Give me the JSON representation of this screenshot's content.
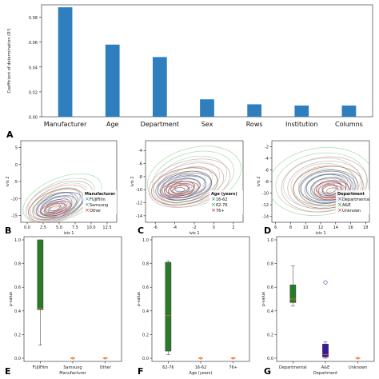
{
  "chart_data": [
    {
      "panel": "A",
      "type": "bar",
      "ylabel": "Coefficient of determination (R²)",
      "ylim": [
        0,
        0.09
      ],
      "yticks": [
        "0.00",
        "0.02",
        "0.04",
        "0.06",
        "0.08"
      ],
      "categories": [
        "Manufacturer",
        "Age",
        "Department",
        "Sex",
        "Rows",
        "Institution",
        "Columns"
      ],
      "values": [
        0.088,
        0.058,
        0.048,
        0.014,
        0.01,
        0.009,
        0.009
      ],
      "color": "#2f7fbf"
    },
    {
      "panel": "B",
      "type": "line",
      "xlabel": "ivis 1",
      "ylabel": "ivis 2",
      "xticks": [
        "0.0",
        "2.5",
        "5.0",
        "7.5",
        "10.0",
        "12.5"
      ],
      "yticks": [
        "-15",
        "-10",
        "-5",
        "0",
        "5"
      ],
      "xlim": [
        -1,
        14
      ],
      "ylim": [
        -17,
        7
      ],
      "legend_title": "Manufacturer",
      "legend": [
        "FUJIFilm",
        "Samsung",
        "Other"
      ],
      "legend_colors": [
        "#1f9e89",
        "#3e8e8e",
        "#d62728"
      ],
      "legend_placement": "bottom-right"
    },
    {
      "panel": "C",
      "type": "line",
      "xlabel": "ivis 1",
      "ylabel": "ivis 2",
      "xticks": [
        "-6",
        "-4",
        "-2",
        "0",
        "2"
      ],
      "yticks": [
        "-14",
        "-12",
        "-10",
        "-8",
        "-6",
        "-4"
      ],
      "xlim": [
        -7,
        3
      ],
      "ylim": [
        -15,
        -2.5
      ],
      "legend_title": "Age (years)",
      "legend": [
        "16-62",
        "62-76",
        "76+"
      ],
      "legend_colors": [
        "#1f77b4",
        "#2ca02c",
        "#d62728"
      ],
      "legend_placement": "bottom-right"
    },
    {
      "panel": "D",
      "type": "line",
      "xlabel": "ivis 1",
      "ylabel": "ivis 2",
      "xticks": [
        "6",
        "8",
        "10",
        "12",
        "14",
        "16",
        "18"
      ],
      "yticks": [
        "-14",
        "-12",
        "-10",
        "-8",
        "-6",
        "-4",
        "-2"
      ],
      "xlim": [
        5.5,
        18.5
      ],
      "ylim": [
        -15,
        -1
      ],
      "legend_title": "Department",
      "legend": [
        "Departmental",
        "A&E",
        "Unknown"
      ],
      "legend_colors": [
        "#1f77b4",
        "#2ca02c",
        "#d62728"
      ],
      "legend_placement": "bottom-right"
    },
    {
      "panel": "E",
      "type": "box",
      "xlabel": "Manufacturer",
      "ylabel": "p-value",
      "ylim": [
        0,
        1
      ],
      "yticks": [
        "0.0",
        "0.2",
        "0.4",
        "0.6",
        "0.8",
        "1.0"
      ],
      "categories": [
        "FUJIFilm",
        "Samsung",
        "Other"
      ],
      "boxes": [
        {
          "whislo": 0.11,
          "q1": 0.41,
          "med": 0.42,
          "q3": 1.0,
          "whishi": 1.0,
          "color": "#2a7a2a"
        },
        {
          "whislo": 0.0,
          "q1": 0.0,
          "med": 0.0,
          "q3": 0.0,
          "whishi": 0.0,
          "color": "#e07020"
        },
        {
          "whislo": 0.0,
          "q1": 0.0,
          "med": 0.0,
          "q3": 0.0,
          "whishi": 0.0,
          "color": "#e07020"
        }
      ]
    },
    {
      "panel": "F",
      "type": "box",
      "xlabel": "Age (years)",
      "ylabel": "p-value",
      "ylim": [
        0,
        1
      ],
      "yticks": [
        "0.0",
        "0.2",
        "0.4",
        "0.6",
        "0.8",
        "1.0"
      ],
      "categories": [
        "62-76",
        "16-62",
        "76+"
      ],
      "boxes": [
        {
          "whislo": 0.03,
          "q1": 0.06,
          "med": 0.36,
          "q3": 0.81,
          "whishi": 0.82,
          "color": "#2a7a2a"
        },
        {
          "whislo": 0.0,
          "q1": 0.0,
          "med": 0.0,
          "q3": 0.0,
          "whishi": 0.0,
          "color": "#e07020"
        },
        {
          "whislo": 0.0,
          "q1": 0.0,
          "med": 0.0,
          "q3": 0.0,
          "whishi": 0.0,
          "color": "#e07020"
        }
      ]
    },
    {
      "panel": "G",
      "type": "box",
      "xlabel": "Department",
      "ylabel": "p-value",
      "ylim": [
        0,
        1
      ],
      "yticks": [
        "0.0",
        "0.2",
        "0.4",
        "0.6",
        "0.8",
        "1.0"
      ],
      "categories": [
        "Departmental",
        "A&E",
        "Unknown"
      ],
      "boxes": [
        {
          "whislo": 0.44,
          "q1": 0.47,
          "med": 0.5,
          "q3": 0.62,
          "whishi": 0.78,
          "color": "#2a7a2a"
        },
        {
          "whislo": 0.0,
          "q1": 0.01,
          "med": 0.03,
          "q3": 0.12,
          "whishi": 0.14,
          "color": "#3b1a9a",
          "outlier": 0.64
        },
        {
          "whislo": 0.0,
          "q1": 0.0,
          "med": 0.0,
          "q3": 0.0,
          "whishi": 0.0,
          "color": "#e07020"
        }
      ]
    }
  ]
}
